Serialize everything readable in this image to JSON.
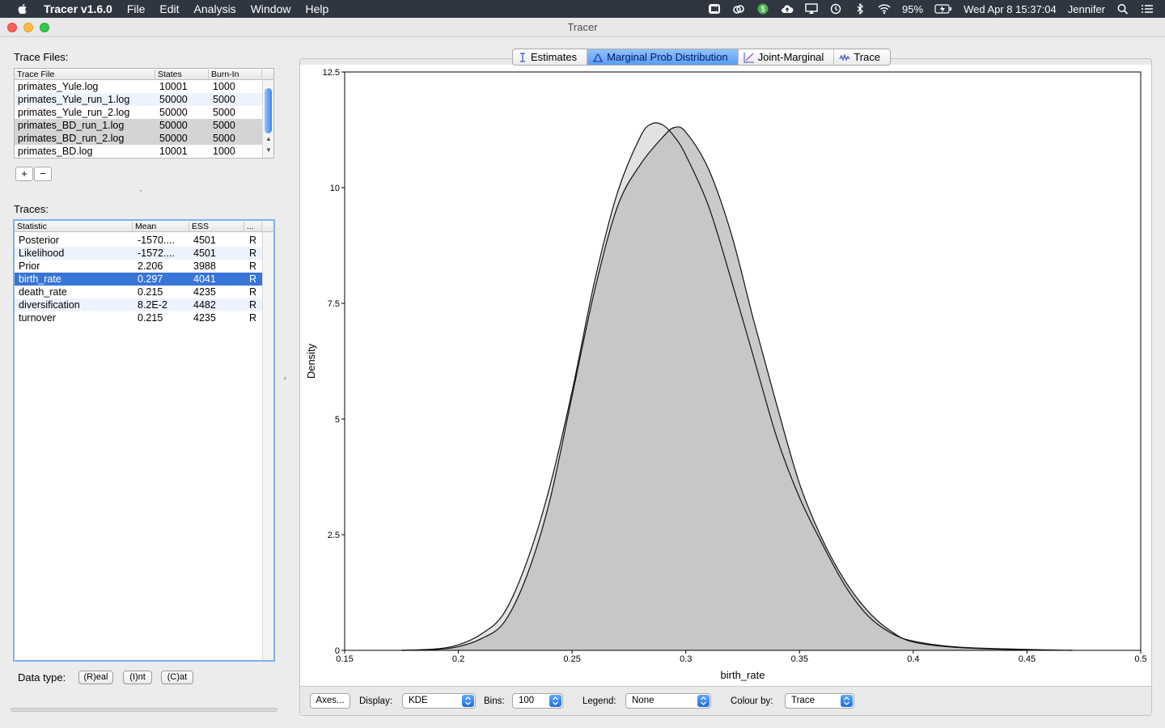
{
  "menubar": {
    "app_name": "Tracer v1.6.0",
    "menus": [
      "File",
      "Edit",
      "Analysis",
      "Window",
      "Help"
    ],
    "battery": "95%",
    "datetime": "Wed Apr 8  15:37:04",
    "user": "Jennifer"
  },
  "window": {
    "title": "Tracer"
  },
  "trace_files": {
    "label": "Trace Files:",
    "columns": [
      "Trace File",
      "States",
      "Burn-In"
    ],
    "rows": [
      {
        "file": "primates_Yule.log",
        "states": "10001",
        "burnin": "1000"
      },
      {
        "file": "primates_Yule_run_1.log",
        "states": "50000",
        "burnin": "5000"
      },
      {
        "file": "primates_Yule_run_2.log",
        "states": "50000",
        "burnin": "5000"
      },
      {
        "file": "primates_BD_run_1.log",
        "states": "50000",
        "burnin": "5000"
      },
      {
        "file": "primates_BD_run_2.log",
        "states": "50000",
        "burnin": "5000"
      },
      {
        "file": "primates_BD.log",
        "states": "10001",
        "burnin": "1000"
      }
    ],
    "add_label": "+",
    "remove_label": "−"
  },
  "traces": {
    "label": "Traces:",
    "columns": [
      "Statistic",
      "Mean",
      "ESS",
      "..."
    ],
    "rows": [
      {
        "stat": "Posterior",
        "mean": "-1570....",
        "ess": "4501",
        "type": "R"
      },
      {
        "stat": "Likelihood",
        "mean": "-1572....",
        "ess": "4501",
        "type": "R"
      },
      {
        "stat": "Prior",
        "mean": "2.206",
        "ess": "3988",
        "type": "R"
      },
      {
        "stat": "birth_rate",
        "mean": "0.297",
        "ess": "4041",
        "type": "R"
      },
      {
        "stat": "death_rate",
        "mean": "0.215",
        "ess": "4235",
        "type": "R"
      },
      {
        "stat": "diversification",
        "mean": "8.2E-2",
        "ess": "4482",
        "type": "R"
      },
      {
        "stat": "turnover",
        "mean": "0.215",
        "ess": "4235",
        "type": "R"
      }
    ],
    "selected_row": "birth_rate"
  },
  "data_type": {
    "label": "Data type:",
    "real": "(R)eal",
    "int": "(I)nt",
    "cat": "(C)at"
  },
  "tabs": [
    "Estimates",
    "Marginal Prob Distribution",
    "Joint-Marginal",
    "Trace"
  ],
  "active_tab": "Marginal Prob Distribution",
  "chart_data": {
    "type": "area",
    "xlabel": "birth_rate",
    "ylabel": "Density",
    "xlim": [
      0.15,
      0.5
    ],
    "ylim": [
      0,
      12.5
    ],
    "xticks": [
      "0.15",
      "0.2",
      "0.25",
      "0.3",
      "0.35",
      "0.4",
      "0.45",
      "0.5"
    ],
    "yticks": [
      "0",
      "2.5",
      "5",
      "7.5",
      "10",
      "12.5"
    ],
    "series": [
      {
        "x": [
          0.175,
          0.19,
          0.2,
          0.21,
          0.22,
          0.23,
          0.24,
          0.25,
          0.26,
          0.27,
          0.28,
          0.285,
          0.29,
          0.295,
          0.3,
          0.31,
          0.32,
          0.33,
          0.34,
          0.35,
          0.36,
          0.37,
          0.38,
          0.39,
          0.4,
          0.42,
          0.45,
          0.47
        ],
        "y": [
          0,
          0.03,
          0.12,
          0.35,
          0.8,
          1.9,
          3.5,
          5.6,
          8.0,
          9.9,
          11.1,
          11.38,
          11.35,
          11.1,
          10.7,
          9.6,
          8.0,
          6.3,
          4.6,
          3.3,
          2.3,
          1.4,
          0.75,
          0.38,
          0.2,
          0.07,
          0.02,
          0
        ]
      },
      {
        "x": [
          0.175,
          0.19,
          0.2,
          0.21,
          0.22,
          0.23,
          0.24,
          0.25,
          0.26,
          0.27,
          0.28,
          0.29,
          0.295,
          0.3,
          0.31,
          0.32,
          0.33,
          0.34,
          0.35,
          0.36,
          0.37,
          0.38,
          0.39,
          0.4,
          0.42,
          0.45,
          0.47
        ],
        "y": [
          0,
          0.02,
          0.08,
          0.25,
          0.6,
          1.6,
          3.2,
          5.5,
          7.8,
          9.6,
          10.5,
          11.1,
          11.3,
          11.2,
          10.4,
          9.0,
          7.1,
          5.3,
          3.6,
          2.4,
          1.5,
          0.85,
          0.42,
          0.18,
          0.06,
          0.01,
          0
        ]
      }
    ]
  },
  "bottom_bar": {
    "axes_label": "Axes...",
    "display_label": "Display:",
    "display_value": "KDE",
    "bins_label": "Bins:",
    "bins_value": "100",
    "legend_label": "Legend:",
    "legend_value": "None",
    "colour_label": "Colour by:",
    "colour_value": "Trace"
  }
}
